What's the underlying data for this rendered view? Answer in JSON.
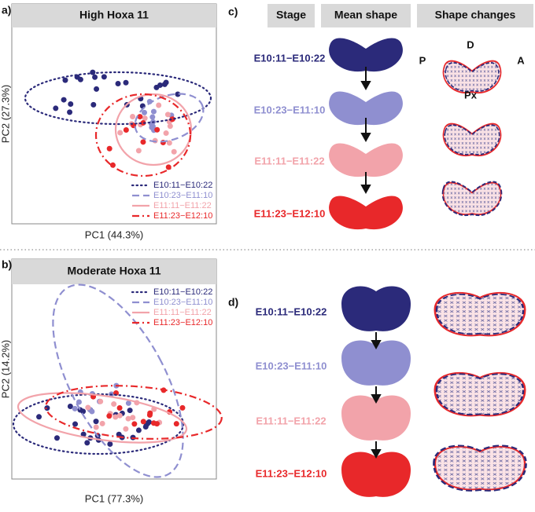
{
  "panels": {
    "a": {
      "label": "a)",
      "title": "High Hoxa 11",
      "x_label": "PC1 (44.3%)",
      "y_label": "PC2 (27.3%)",
      "legend": [
        "E10:11−E10:22",
        "E10:23−E11:10",
        "E11:11−E11:22",
        "E11:23−E12:10"
      ]
    },
    "b": {
      "label": "b)",
      "title": "Moderate Hoxa 11",
      "x_label": "PC1 (77.3%)",
      "y_label": "PC2 (14.2%)",
      "legend": [
        "E10:11−E10:22",
        "E10:23−E11:10",
        "E11:11−E11:22",
        "E11:23−E12:10"
      ]
    },
    "c": {
      "label": "c)",
      "headers": [
        "Stage",
        "Mean shape",
        "Shape changes"
      ],
      "stages": [
        "E10:11−E10:22",
        "E10:23−E11:10",
        "E11:11−E11:22",
        "E11:23−E12:10"
      ],
      "landmarks": [
        "P",
        "D",
        "A",
        "Px"
      ]
    },
    "d": {
      "label": "d)",
      "stages": [
        "E10:11−E10:22",
        "E10:23−E11:10",
        "E11:11−E11:22",
        "E11:23−E12:10"
      ]
    }
  }
}
